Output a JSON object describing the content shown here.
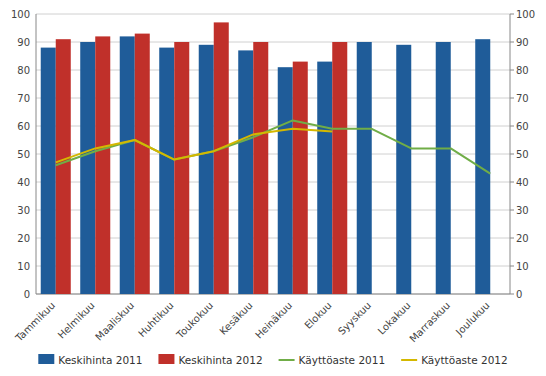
{
  "chart_data": {
    "type": "bar",
    "categories": [
      "Tammikuu",
      "Helmikuu",
      "Maaliskuu",
      "Huhtikuu",
      "Toukokuu",
      "Kesäkuu",
      "Heinäkuu",
      "Elokuu",
      "Syyskuu",
      "Lokakuu",
      "Marraskuu",
      "Joulukuu"
    ],
    "series": [
      {
        "name": "Keskihinta 2011",
        "type": "bar",
        "color": "#1F5C99",
        "values": [
          88,
          90,
          92,
          88,
          89,
          87,
          81,
          83,
          90,
          89,
          90,
          91
        ]
      },
      {
        "name": "Keskihinta 2012",
        "type": "bar",
        "color": "#C0302A",
        "values": [
          91,
          92,
          93,
          90,
          97,
          90,
          83,
          90,
          null,
          null,
          null,
          null
        ]
      },
      {
        "name": "Käyttöaste 2011",
        "type": "line",
        "axis": "y2",
        "color": "#70AD47",
        "values": [
          46,
          51,
          55,
          48,
          51,
          56,
          62,
          59,
          59,
          52,
          52,
          43
        ]
      },
      {
        "name": "Käyttöaste 2012",
        "type": "line",
        "axis": "y2",
        "color": "#D4B800",
        "values": [
          47,
          52,
          55,
          48,
          51,
          57,
          59,
          58,
          null,
          null,
          null,
          null
        ]
      }
    ],
    "ylim": [
      0,
      100
    ],
    "yticks": [
      0,
      10,
      20,
      30,
      40,
      50,
      60,
      70,
      80,
      90,
      100
    ],
    "y2lim": [
      0,
      100
    ],
    "y2ticks": [
      0,
      10,
      20,
      30,
      40,
      50,
      60,
      70,
      80,
      90,
      100
    ],
    "grid": true,
    "legend": "bottom"
  }
}
